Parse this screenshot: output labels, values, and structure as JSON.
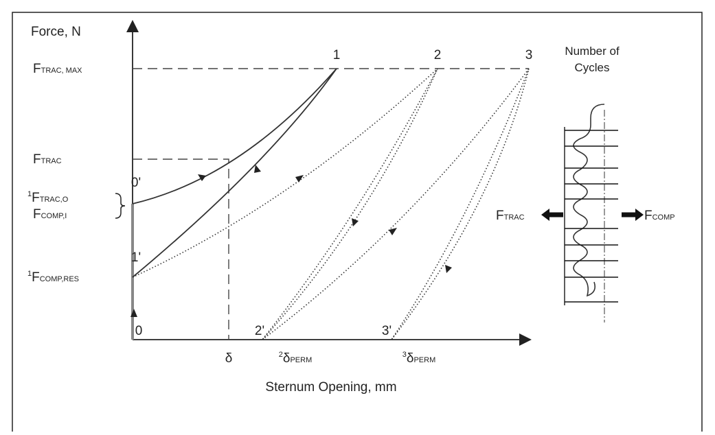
{
  "axes": {
    "y_title": "Force, N",
    "x_title": "Sternum Opening, mm"
  },
  "y_labels": [
    {
      "main": "F",
      "sub": "TRAC, MAX"
    },
    {
      "main": "F",
      "sub": "TRAC"
    },
    {
      "pre": "1",
      "main": "F",
      "sub": "TRAC,O"
    },
    {
      "main": "F",
      "sub": "COMP,I"
    },
    {
      "pre": "1",
      "main": "F",
      "sub": "COMP,RES"
    }
  ],
  "points": [
    "1",
    "2",
    "3",
    "0'",
    "1'",
    "0",
    "2'",
    "3'"
  ],
  "x_labels": [
    {
      "main": "δ"
    },
    {
      "pre": "2",
      "main": "δ",
      "sub": "PERM"
    },
    {
      "pre": "3",
      "main": "δ",
      "sub": "PERM"
    }
  ],
  "inset": {
    "title_line1": "Number of",
    "title_line2": "Cycles",
    "left": {
      "main": "F",
      "sub": "TRAC"
    },
    "right": {
      "main": "F",
      "sub": "COMP"
    }
  }
}
